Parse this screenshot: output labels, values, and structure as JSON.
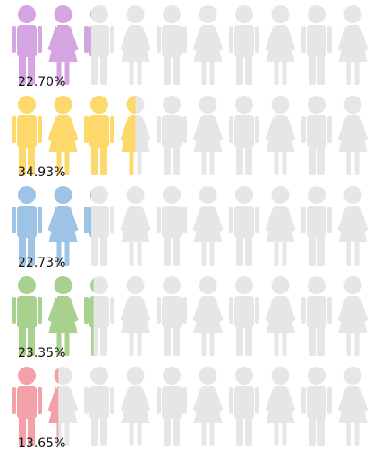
{
  "chart_data": {
    "type": "pictograph",
    "values": [
      22.7,
      34.93,
      22.73,
      23.35,
      13.65
    ],
    "value_labels": [
      "22.70%",
      "34.93%",
      "22.73%",
      "23.35%",
      "13.65%"
    ],
    "colors": [
      "#d4a5e0",
      "#fdd96b",
      "#9dc3e6",
      "#a9d18e",
      "#f4a0a8"
    ],
    "xlim": [
      0,
      100
    ]
  }
}
